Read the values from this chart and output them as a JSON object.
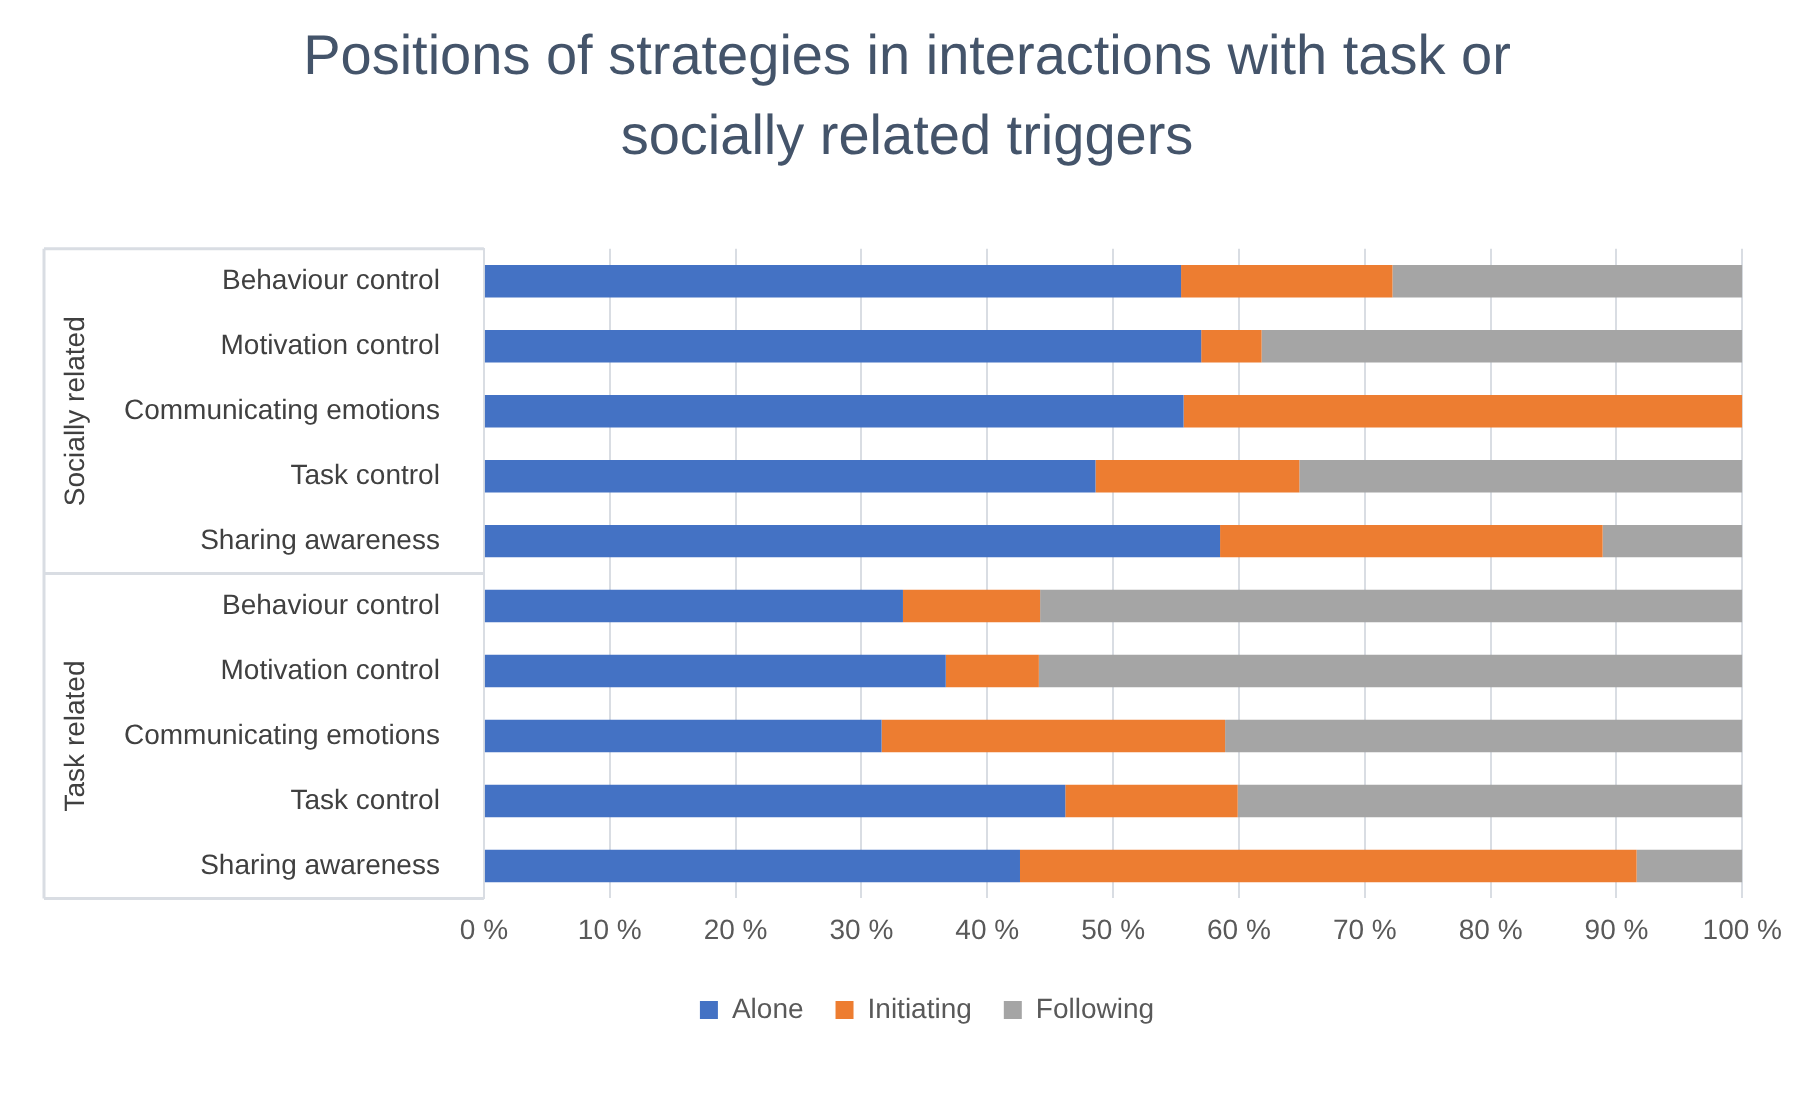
{
  "chart_data": {
    "type": "bar",
    "orientation": "horizontal",
    "stacked": true,
    "title": "Positions of strategies in interactions with task or socially related triggers",
    "categories": [
      "Behaviour control",
      "Motivation control",
      "Communicating emotions",
      "Task control",
      "Sharing awareness",
      "Behaviour control",
      "Motivation control",
      "Communicating emotions",
      "Task control",
      "Sharing awareness"
    ],
    "series": [
      {
        "name": "Alone",
        "color": "#4472c4",
        "values": [
          55.4,
          57.0,
          55.6,
          48.6,
          58.5,
          33.3,
          36.7,
          31.6,
          46.2,
          42.6
        ]
      },
      {
        "name": "Initiating",
        "color": "#ed7d31",
        "values": [
          16.8,
          4.8,
          44.4,
          16.2,
          30.4,
          10.9,
          7.4,
          27.3,
          13.7,
          49.0
        ]
      },
      {
        "name": "Following",
        "color": "#a5a5a5",
        "values": [
          27.8,
          38.2,
          0,
          35.2,
          11.1,
          55.8,
          55.9,
          41.1,
          40.1,
          8.4
        ]
      }
    ],
    "xlim": [
      0,
      100
    ],
    "xticks": [
      {
        "value": 0,
        "label": "0 %"
      },
      {
        "value": 10,
        "label": "10 %"
      },
      {
        "value": 20,
        "label": "20 %"
      },
      {
        "value": 30,
        "label": "30 %"
      },
      {
        "value": 40,
        "label": "40 %"
      },
      {
        "value": 50,
        "label": "50 %"
      },
      {
        "value": 60,
        "label": "60 %"
      },
      {
        "value": 70,
        "label": "70 %"
      },
      {
        "value": 80,
        "label": "80 %"
      },
      {
        "value": 90,
        "label": "90 %"
      },
      {
        "value": 100,
        "label": "100 %"
      }
    ],
    "annotations": [
      "Socially related",
      "Task related"
    ],
    "grid": "x",
    "legend": "bottom"
  }
}
